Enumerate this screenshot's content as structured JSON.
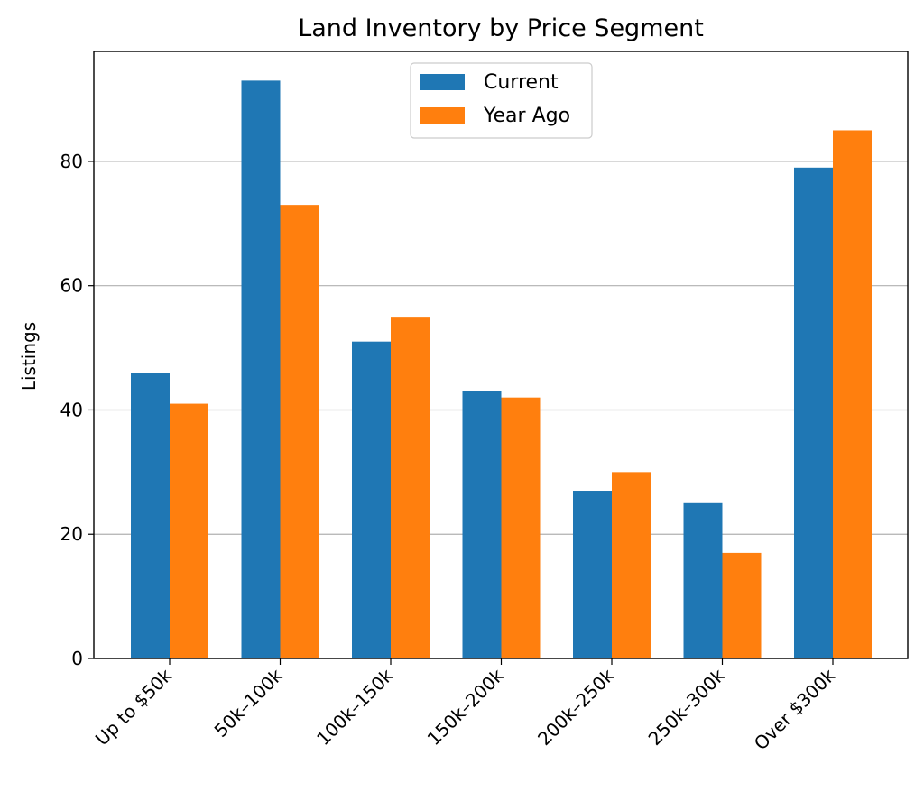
{
  "chart_data": {
    "type": "bar",
    "title": "Land Inventory by Price Segment",
    "xlabel": "",
    "ylabel": "Listings",
    "ylim": [
      0,
      97.7
    ],
    "yticks": [
      0,
      20,
      40,
      60,
      80
    ],
    "grid": "y",
    "legend_position": "top-center",
    "categories": [
      "Up to $50k",
      "$50k–$100k",
      "$100k–$150k",
      "$150k–$200k",
      "$200k–$250k",
      "$250k–$300k",
      "Over $300k"
    ],
    "category_labels": [
      "Up to $50k",
      "50k–100k",
      "100k–150k",
      "150k–200k",
      "200k–250k",
      "250k–300k",
      "Over $300k"
    ],
    "series": [
      {
        "name": "Current",
        "color": "#1f77b4",
        "values": [
          46,
          93,
          51,
          43,
          27,
          25,
          79
        ]
      },
      {
        "name": "Year Ago",
        "color": "#ff7f0e",
        "values": [
          41,
          73,
          55,
          42,
          30,
          17,
          85
        ]
      }
    ]
  }
}
